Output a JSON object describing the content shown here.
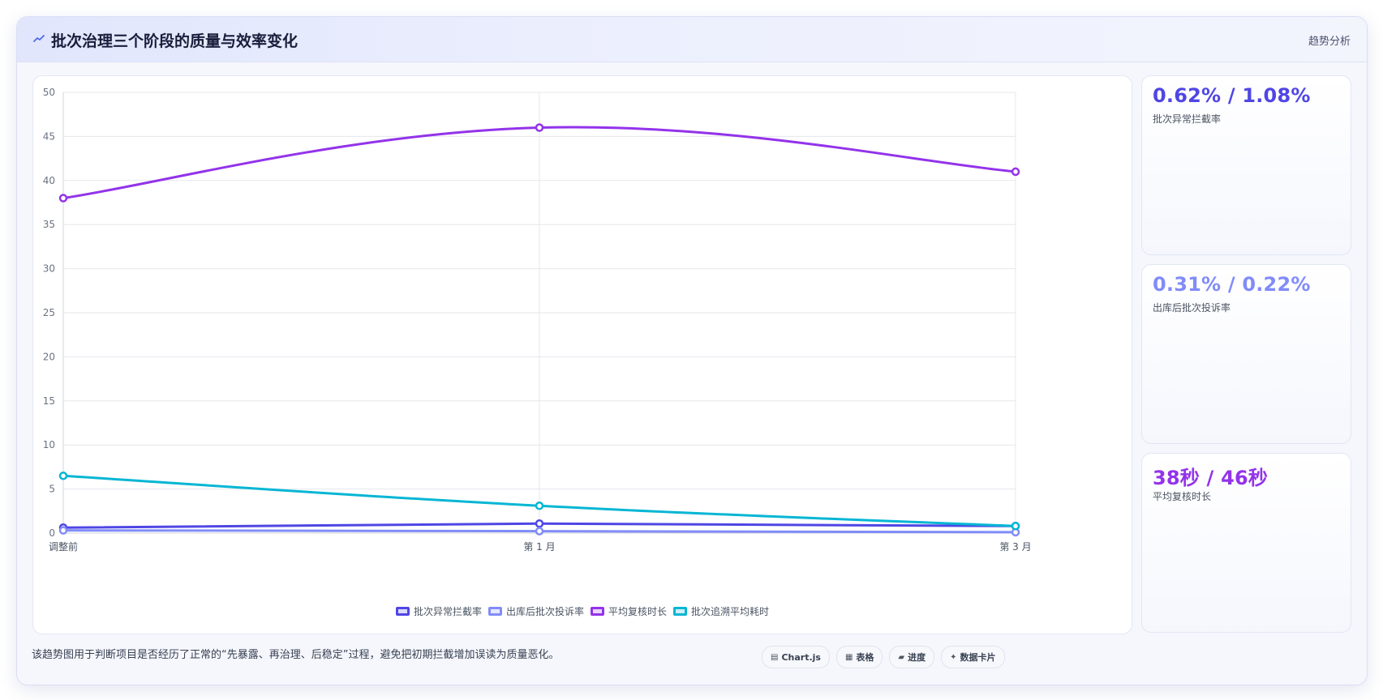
{
  "header": {
    "title": "批次治理三个阶段的质量与效率变化",
    "tag": "趋势分析",
    "icon": "trend-icon"
  },
  "stats": [
    {
      "value": "0.62% / 1.08%",
      "label": "批次异常拦截率",
      "color": "#4f46e5"
    },
    {
      "value": "0.31% / 0.22%",
      "label": "出库后批次投诉率",
      "color": "#818cf8"
    },
    {
      "value": "38秒 / 46秒",
      "label": "平均复核时长",
      "color": "#9333ea"
    }
  ],
  "footer": {
    "note": "该趋势图用于判断项目是否经历了正常的“先暴露、再治理、后稳定”过程，避免把初期拦截增加误读为质量恶化。",
    "chips": [
      {
        "icon": "chart-icon",
        "glyph": "▤",
        "label": "Chart.js"
      },
      {
        "icon": "table-icon",
        "glyph": "▦",
        "label": "表格"
      },
      {
        "icon": "progress-icon",
        "glyph": "▰",
        "label": "进度"
      },
      {
        "icon": "data-card-icon",
        "glyph": "✦",
        "label": "数据卡片"
      }
    ]
  },
  "chart_data": {
    "type": "line",
    "categories": [
      "调整前",
      "第 1 月",
      "第 3 月"
    ],
    "ylim": [
      0,
      50
    ],
    "yticks": [
      0,
      5,
      10,
      15,
      20,
      25,
      30,
      35,
      40,
      45,
      50
    ],
    "grid": true,
    "legend_position": "bottom",
    "series": [
      {
        "name": "批次异常拦截率",
        "values": [
          0.62,
          1.08,
          0.8
        ],
        "color": "#4f46e5"
      },
      {
        "name": "出库后批次投诉率",
        "values": [
          0.31,
          0.22,
          0.1
        ],
        "color": "#818cf8"
      },
      {
        "name": "平均复核时长",
        "values": [
          38,
          46,
          41
        ],
        "color": "#9333ea"
      },
      {
        "name": "批次追溯平均耗时",
        "values": [
          6.5,
          3.1,
          0.8
        ],
        "color": "#06b6d4"
      }
    ]
  }
}
